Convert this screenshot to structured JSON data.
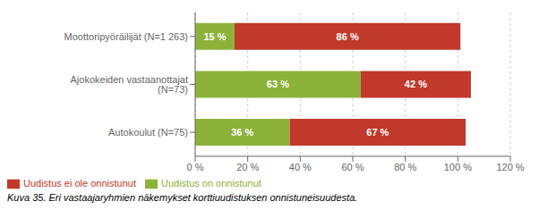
{
  "chart_data": {
    "type": "bar",
    "orientation": "horizontal",
    "stacked": true,
    "data_labels": true,
    "grid": true,
    "legend": "bottom",
    "categories": [
      "Autokoulut (N=75)",
      "Ajokokeiden vastaanottajat (N=73)",
      "Moottoripyöräilijät (N=1 263)"
    ],
    "series": [
      {
        "name": "Uudistus on onnistunut",
        "color": "#8DB23A",
        "values": [
          36,
          63,
          15
        ],
        "value_labels": [
          "36 %",
          "63 %",
          "15 %"
        ]
      },
      {
        "name": "Uudistus ei ole onnistunut",
        "color": "#C0392B",
        "values": [
          67,
          42,
          86
        ],
        "value_labels": [
          "67 %",
          "42 %",
          "86 %"
        ]
      }
    ],
    "xlim": [
      0,
      120
    ],
    "xticks": [
      {
        "value": 0,
        "label": "0 %"
      },
      {
        "value": 20,
        "label": "20 %"
      },
      {
        "value": 40,
        "label": "40 %"
      },
      {
        "value": 60,
        "label": "60 %"
      },
      {
        "value": 80,
        "label": "80 %"
      },
      {
        "value": 100,
        "label": "100 %"
      },
      {
        "value": 120,
        "label": "120 %"
      }
    ],
    "caption": "Kuva 35. Eri vastaajaryhmien näkemykset korttiuudistuksen onnistuneisuudesta."
  }
}
